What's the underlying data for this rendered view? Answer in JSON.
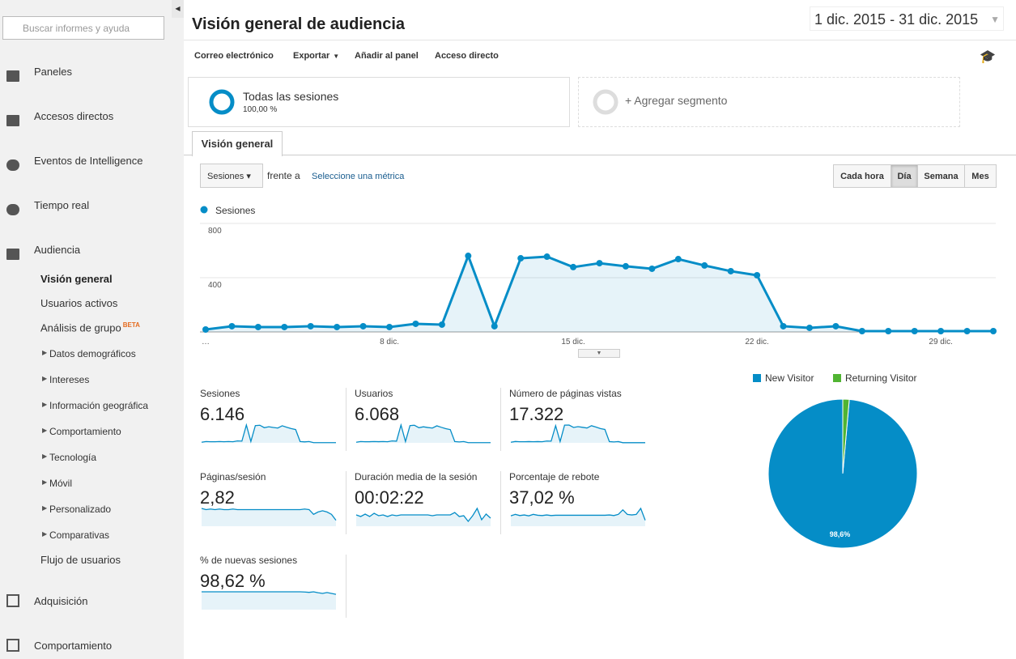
{
  "sidebar": {
    "search_placeholder": "Buscar informes y ayuda",
    "nav": [
      "Paneles",
      "Accesos directos",
      "Eventos de Intelligence",
      "Tiempo real",
      "Audiencia"
    ],
    "subnav": [
      {
        "label": "Visión general",
        "active": true
      },
      {
        "label": "Usuarios activos"
      },
      {
        "label": "Análisis de grupo",
        "badge": "BETA"
      },
      {
        "label": "Datos demográficos",
        "expandable": true
      },
      {
        "label": "Intereses",
        "expandable": true
      },
      {
        "label": "Información geográfica",
        "expandable": true
      },
      {
        "label": "Comportamiento",
        "expandable": true
      },
      {
        "label": "Tecnología",
        "expandable": true
      },
      {
        "label": "Móvil",
        "expandable": true
      },
      {
        "label": "Personalizado",
        "expandable": true
      },
      {
        "label": "Comparativas",
        "expandable": true
      },
      {
        "label": "Flujo de usuarios"
      }
    ],
    "nav_bottom": [
      "Adquisición",
      "Comportamiento"
    ]
  },
  "header": {
    "title": "Visión general de audiencia",
    "date_range": "1 dic. 2015 - 31 dic. 2015"
  },
  "toolbar": [
    {
      "label": "Correo electrónico"
    },
    {
      "label": "Exportar",
      "menu": true
    },
    {
      "label": "Añadir al panel"
    },
    {
      "label": "Acceso directo"
    }
  ],
  "segments": {
    "name": "Todas las sesiones",
    "share": "100,00 %",
    "add": "+ Agregar segmento"
  },
  "tab": "Visión general",
  "controls": {
    "metric": "Sesiones",
    "versus": "frente a",
    "select_metric": "Seleccione una métrica",
    "granularity": [
      "Cada hora",
      "Día",
      "Semana",
      "Mes"
    ],
    "selected": 1
  },
  "chart_data": [
    {
      "type": "line",
      "series": [
        {
          "name": "Sesiones",
          "color": "#058dc7",
          "values": [
            18,
            42,
            36,
            36,
            42,
            36,
            42,
            36,
            60,
            54,
            561,
            42,
            543,
            555,
            478,
            507,
            484,
            466,
            537,
            490,
            448,
            418,
            42,
            30,
            42,
            6,
            6,
            6,
            6,
            6,
            6
          ]
        }
      ],
      "categories": [
        "…",
        null,
        null,
        null,
        null,
        null,
        null,
        "8 dic.",
        null,
        null,
        null,
        null,
        null,
        null,
        "15 dic.",
        null,
        null,
        null,
        null,
        null,
        null,
        "22 dic.",
        null,
        null,
        null,
        null,
        null,
        null,
        "29 dic.",
        null,
        null
      ],
      "ylim": [
        0,
        800
      ],
      "yticks": [
        400,
        800
      ],
      "grid": true,
      "area": true
    },
    {
      "type": "pie",
      "categories": [
        "New Visitor",
        "Returning Visitor"
      ],
      "values": [
        98.6,
        1.4
      ],
      "value_labels": [
        "98,6%",
        null
      ],
      "colors": [
        "#058dc7",
        "#50b432"
      ]
    }
  ],
  "metrics": [
    {
      "label": "Sesiones",
      "value": "6.146",
      "trend": [
        18,
        42,
        36,
        36,
        42,
        36,
        42,
        36,
        60,
        54,
        561,
        42,
        543,
        555,
        478,
        507,
        484,
        466,
        537,
        490,
        448,
        418,
        42,
        30,
        42,
        6,
        6,
        6,
        6,
        6,
        6
      ]
    },
    {
      "label": "Usuarios",
      "value": "6.068",
      "trend": [
        18,
        41,
        35,
        36,
        41,
        36,
        41,
        35,
        59,
        53,
        555,
        41,
        537,
        548,
        472,
        500,
        478,
        460,
        530,
        484,
        442,
        413,
        41,
        29,
        41,
        6,
        6,
        6,
        6,
        6,
        6
      ]
    },
    {
      "label": "Número de páginas vistas",
      "value": "17.322",
      "trend": [
        50,
        120,
        100,
        100,
        110,
        100,
        110,
        100,
        160,
        150,
        1500,
        110,
        1550,
        1560,
        1350,
        1420,
        1360,
        1300,
        1500,
        1380,
        1250,
        1170,
        110,
        80,
        110,
        15,
        15,
        15,
        15,
        15,
        15
      ]
    },
    {
      "label": "Páginas/sesión",
      "value": "2,82",
      "trend": [
        3.0,
        2.8,
        2.9,
        2.8,
        2.9,
        2.8,
        2.8,
        2.9,
        2.8,
        2.8,
        2.8,
        2.8,
        2.8,
        2.8,
        2.8,
        2.8,
        2.8,
        2.8,
        2.8,
        2.8,
        2.8,
        2.8,
        2.8,
        2.9,
        2.8,
        2.0,
        2.4,
        2.6,
        2.4,
        2.0,
        1.0
      ]
    },
    {
      "label": "Duración media de la sesión",
      "value": "00:02:22",
      "trend": [
        140,
        120,
        150,
        120,
        160,
        130,
        140,
        120,
        140,
        130,
        140,
        140,
        140,
        140,
        140,
        140,
        140,
        130,
        140,
        140,
        140,
        140,
        170,
        120,
        130,
        60,
        130,
        220,
        80,
        150,
        100
      ]
    },
    {
      "label": "Porcentaje de rebote",
      "value": "37,02 %",
      "trend": [
        35,
        40,
        36,
        38,
        35,
        40,
        37,
        36,
        38,
        36,
        37,
        37,
        37,
        37,
        37,
        37,
        37,
        37,
        37,
        37,
        37,
        37,
        38,
        36,
        40,
        55,
        40,
        38,
        40,
        60,
        20
      ]
    },
    {
      "label": "% de nuevas sesiones",
      "value": "98,62 %",
      "trend": [
        99,
        99,
        99,
        99,
        99,
        99,
        99,
        99,
        99,
        99,
        99,
        99,
        99,
        99,
        99,
        99,
        99,
        99,
        99,
        99,
        99,
        99,
        99,
        98,
        96,
        99,
        94,
        90,
        95,
        90,
        85
      ]
    }
  ]
}
